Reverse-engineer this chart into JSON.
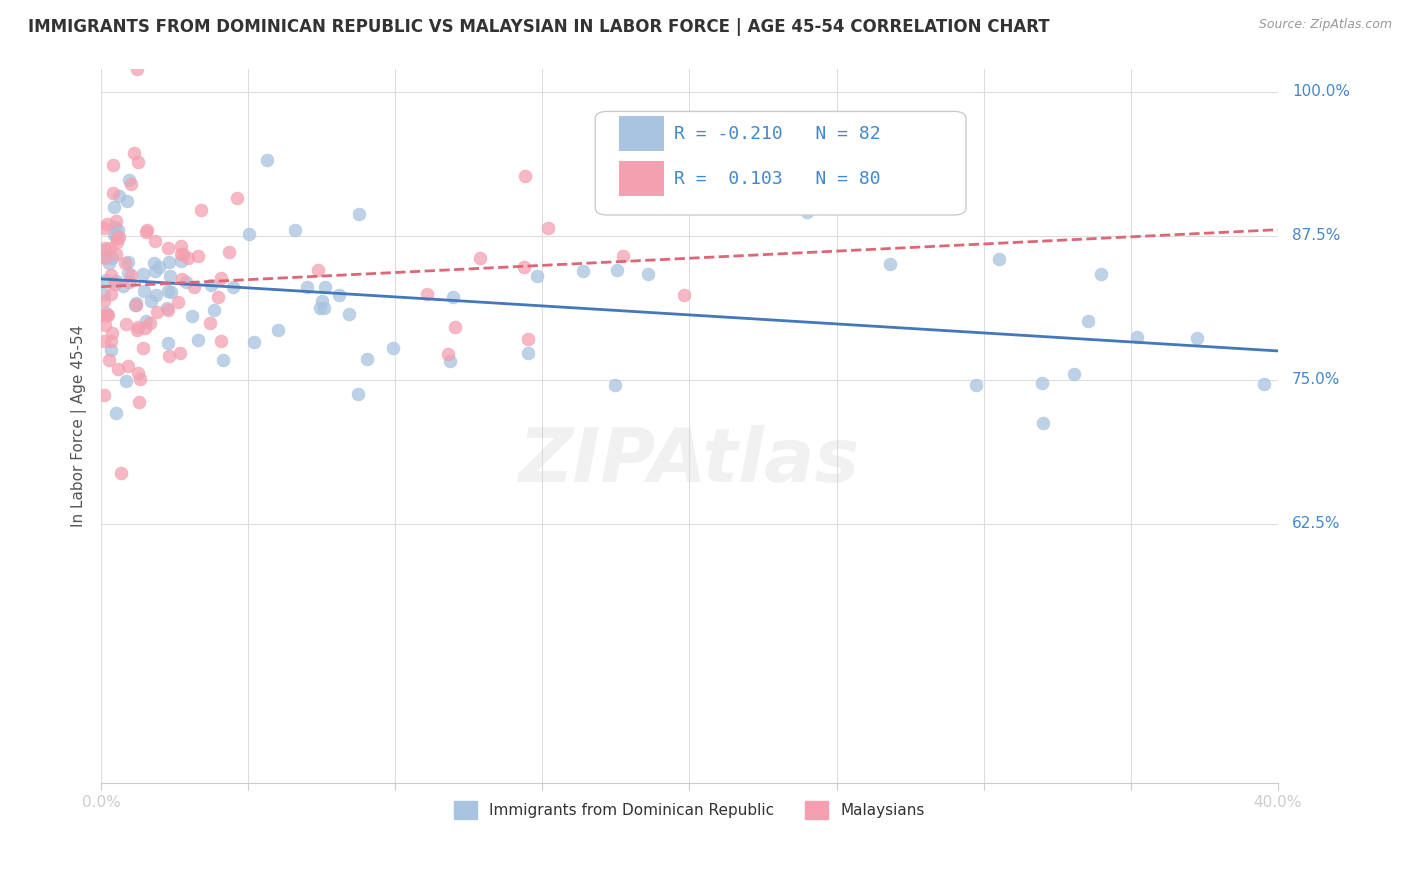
{
  "title": "IMMIGRANTS FROM DOMINICAN REPUBLIC VS MALAYSIAN IN LABOR FORCE | AGE 45-54 CORRELATION CHART",
  "source": "Source: ZipAtlas.com",
  "ylabel_label": "In Labor Force | Age 45-54",
  "blue_color": "#a8c4e0",
  "pink_color": "#f4a0b0",
  "blue_line_color": "#4477bb",
  "pink_line_color": "#dd6677",
  "background_color": "#ffffff",
  "grid_color": "#dddddd",
  "xlim": [
    0.0,
    0.4
  ],
  "ylim": [
    0.4,
    1.02
  ],
  "ytick_labels": {
    "1.0": "100.0%",
    "0.875": "87.5%",
    "0.75": "75.0%",
    "0.625": "62.5%"
  },
  "legend_blue_text": "R = -0.210   N = 82",
  "legend_pink_text": "R =  0.103   N = 80",
  "bottom_legend_blue": "Immigrants from Dominican Republic",
  "bottom_legend_pink": "Malaysians"
}
